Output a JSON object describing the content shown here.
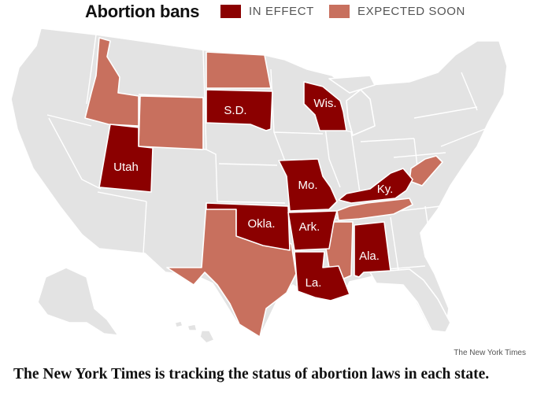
{
  "header": {
    "title": "Abortion bans",
    "legend": [
      {
        "label": "IN EFFECT",
        "color": "#8b0000"
      },
      {
        "label": "EXPECTED SOON",
        "color": "#c8705e"
      }
    ]
  },
  "map": {
    "base_color": "#e3e3e3",
    "in_effect_states": [
      {
        "label": "Utah"
      },
      {
        "label": "S.D."
      },
      {
        "label": "Wis."
      },
      {
        "label": "Mo."
      },
      {
        "label": "Ky."
      },
      {
        "label": "Okla."
      },
      {
        "label": "Ark."
      },
      {
        "label": "Ala."
      },
      {
        "label": "La."
      }
    ],
    "expected_soon_states": [
      "Idaho",
      "Wyoming",
      "North Dakota",
      "Texas",
      "Tennessee",
      "Mississippi",
      "West Virginia"
    ]
  },
  "credit": "The New York Times",
  "caption": "The New York Times is tracking the status of abortion laws in each state."
}
